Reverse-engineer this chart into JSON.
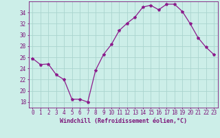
{
  "x": [
    0,
    1,
    2,
    3,
    4,
    5,
    6,
    7,
    8,
    9,
    10,
    11,
    12,
    13,
    14,
    15,
    16,
    17,
    18,
    19,
    20,
    21,
    22,
    23
  ],
  "y": [
    25.8,
    24.7,
    24.8,
    22.9,
    22.0,
    18.5,
    18.5,
    18.0,
    23.7,
    26.5,
    28.3,
    30.8,
    32.1,
    33.2,
    35.0,
    35.3,
    34.5,
    35.5,
    35.5,
    34.2,
    32.0,
    29.5,
    27.8,
    26.5
  ],
  "line_color": "#8b1a8b",
  "marker": "*",
  "marker_size": 3,
  "bg_color": "#cceee8",
  "grid_color": "#aad4ce",
  "xlabel": "Windchill (Refroidissement éolien,°C)",
  "xlabel_fontsize": 6.0,
  "xtick_labels": [
    "0",
    "1",
    "2",
    "3",
    "4",
    "5",
    "6",
    "7",
    "8",
    "9",
    "10",
    "11",
    "12",
    "13",
    "14",
    "15",
    "16",
    "17",
    "18",
    "19",
    "20",
    "21",
    "22",
    "23"
  ],
  "ytick_labels": [
    "18",
    "20",
    "22",
    "24",
    "26",
    "28",
    "30",
    "32",
    "34"
  ],
  "ylim": [
    17.0,
    36.0
  ],
  "xlim": [
    -0.5,
    23.5
  ],
  "tick_fontsize": 5.5,
  "axis_color": "#7b1278"
}
